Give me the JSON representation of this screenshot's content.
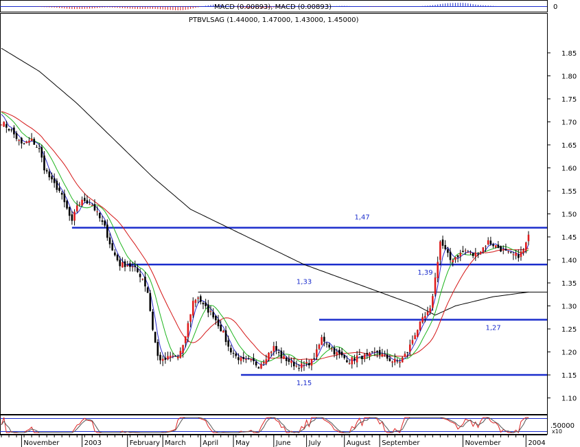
{
  "chart_data": {
    "type": "candlestick",
    "title": "PTBVLSAG (1.44000, 1.47000, 1.43000, 1.45000)",
    "macd_label": "MACD (0.00893), MACD (0.00893)",
    "oscillator_label": ".50000",
    "scale_note": "x10",
    "macd_zero_label": "0",
    "y_ticks": [
      "1.85",
      "1.80",
      "1.75",
      "1.70",
      "1.65",
      "1.60",
      "1.55",
      "1.50",
      "1.45",
      "1.40",
      "1.35",
      "1.30",
      "1.25",
      "1.20",
      "1.15",
      "1.10"
    ],
    "ylim": [
      1.065,
      1.935
    ],
    "x_labels": [
      {
        "label": "November",
        "idx": 8
      },
      {
        "label": "2003",
        "idx": 32
      },
      {
        "label": "February",
        "idx": 50
      },
      {
        "label": "March",
        "idx": 64
      },
      {
        "label": "April",
        "idx": 79
      },
      {
        "label": "May",
        "idx": 92
      },
      {
        "label": "June",
        "idx": 108
      },
      {
        "label": "July",
        "idx": 121
      },
      {
        "label": "August",
        "idx": 136
      },
      {
        "label": "September",
        "idx": 150
      },
      {
        "label": "November",
        "idx": 183
      },
      {
        "label": "2004",
        "idx": 208
      }
    ],
    "levels": [
      {
        "label": "1,47",
        "value": 1.47,
        "from": 28,
        "thick": true,
        "label_pos": 140
      },
      {
        "label": "1,39",
        "value": 1.39,
        "from": 50,
        "thick": true,
        "label_pos": 165
      },
      {
        "label": "1,33",
        "value": 1.33,
        "from": 78,
        "thick": false,
        "label_pos": 117
      },
      {
        "label": "1,27",
        "value": 1.27,
        "from": 126,
        "thick": true,
        "label_pos": 192
      },
      {
        "label": "1,15",
        "value": 1.15,
        "from": 95,
        "thick": true,
        "label_pos": 117
      }
    ],
    "close_anchors": [
      [
        0,
        1.7
      ],
      [
        4,
        1.68
      ],
      [
        8,
        1.65
      ],
      [
        12,
        1.66
      ],
      [
        15,
        1.64
      ],
      [
        17,
        1.6
      ],
      [
        20,
        1.57
      ],
      [
        23,
        1.55
      ],
      [
        26,
        1.51
      ],
      [
        28,
        1.48
      ],
      [
        30,
        1.52
      ],
      [
        33,
        1.53
      ],
      [
        36,
        1.52
      ],
      [
        38,
        1.5
      ],
      [
        41,
        1.47
      ],
      [
        44,
        1.42
      ],
      [
        47,
        1.39
      ],
      [
        50,
        1.39
      ],
      [
        53,
        1.38
      ],
      [
        56,
        1.36
      ],
      [
        58,
        1.33
      ],
      [
        60,
        1.25
      ],
      [
        62,
        1.19
      ],
      [
        64,
        1.18
      ],
      [
        67,
        1.19
      ],
      [
        70,
        1.19
      ],
      [
        72,
        1.21
      ],
      [
        74,
        1.26
      ],
      [
        76,
        1.31
      ],
      [
        78,
        1.32
      ],
      [
        80,
        1.3
      ],
      [
        82,
        1.29
      ],
      [
        84,
        1.28
      ],
      [
        86,
        1.26
      ],
      [
        88,
        1.24
      ],
      [
        90,
        1.21
      ],
      [
        93,
        1.19
      ],
      [
        96,
        1.18
      ],
      [
        99,
        1.18
      ],
      [
        102,
        1.17
      ],
      [
        105,
        1.19
      ],
      [
        108,
        1.21
      ],
      [
        111,
        1.19
      ],
      [
        114,
        1.18
      ],
      [
        117,
        1.17
      ],
      [
        120,
        1.17
      ],
      [
        123,
        1.18
      ],
      [
        125,
        1.2
      ],
      [
        127,
        1.23
      ],
      [
        129,
        1.22
      ],
      [
        132,
        1.2
      ],
      [
        135,
        1.19
      ],
      [
        138,
        1.18
      ],
      [
        141,
        1.19
      ],
      [
        145,
        1.19
      ],
      [
        149,
        1.2
      ],
      [
        152,
        1.19
      ],
      [
        155,
        1.18
      ],
      [
        158,
        1.18
      ],
      [
        161,
        1.2
      ],
      [
        164,
        1.24
      ],
      [
        167,
        1.27
      ],
      [
        170,
        1.29
      ],
      [
        172,
        1.36
      ],
      [
        174,
        1.44
      ],
      [
        176,
        1.42
      ],
      [
        178,
        1.4
      ],
      [
        181,
        1.41
      ],
      [
        184,
        1.42
      ],
      [
        187,
        1.41
      ],
      [
        190,
        1.42
      ],
      [
        193,
        1.44
      ],
      [
        196,
        1.43
      ],
      [
        199,
        1.42
      ],
      [
        202,
        1.41
      ],
      [
        205,
        1.41
      ],
      [
        207,
        1.42
      ],
      [
        209,
        1.45
      ]
    ],
    "bar_count": 210,
    "ma200_anchors": [
      [
        0,
        1.86
      ],
      [
        15,
        1.81
      ],
      [
        30,
        1.74
      ],
      [
        45,
        1.66
      ],
      [
        60,
        1.58
      ],
      [
        75,
        1.51
      ],
      [
        90,
        1.47
      ],
      [
        105,
        1.43
      ],
      [
        120,
        1.39
      ],
      [
        135,
        1.36
      ],
      [
        150,
        1.33
      ],
      [
        165,
        1.3
      ],
      [
        172,
        1.28
      ],
      [
        180,
        1.3
      ],
      [
        195,
        1.32
      ],
      [
        209,
        1.33
      ]
    ],
    "grid": false,
    "legend": "none"
  }
}
